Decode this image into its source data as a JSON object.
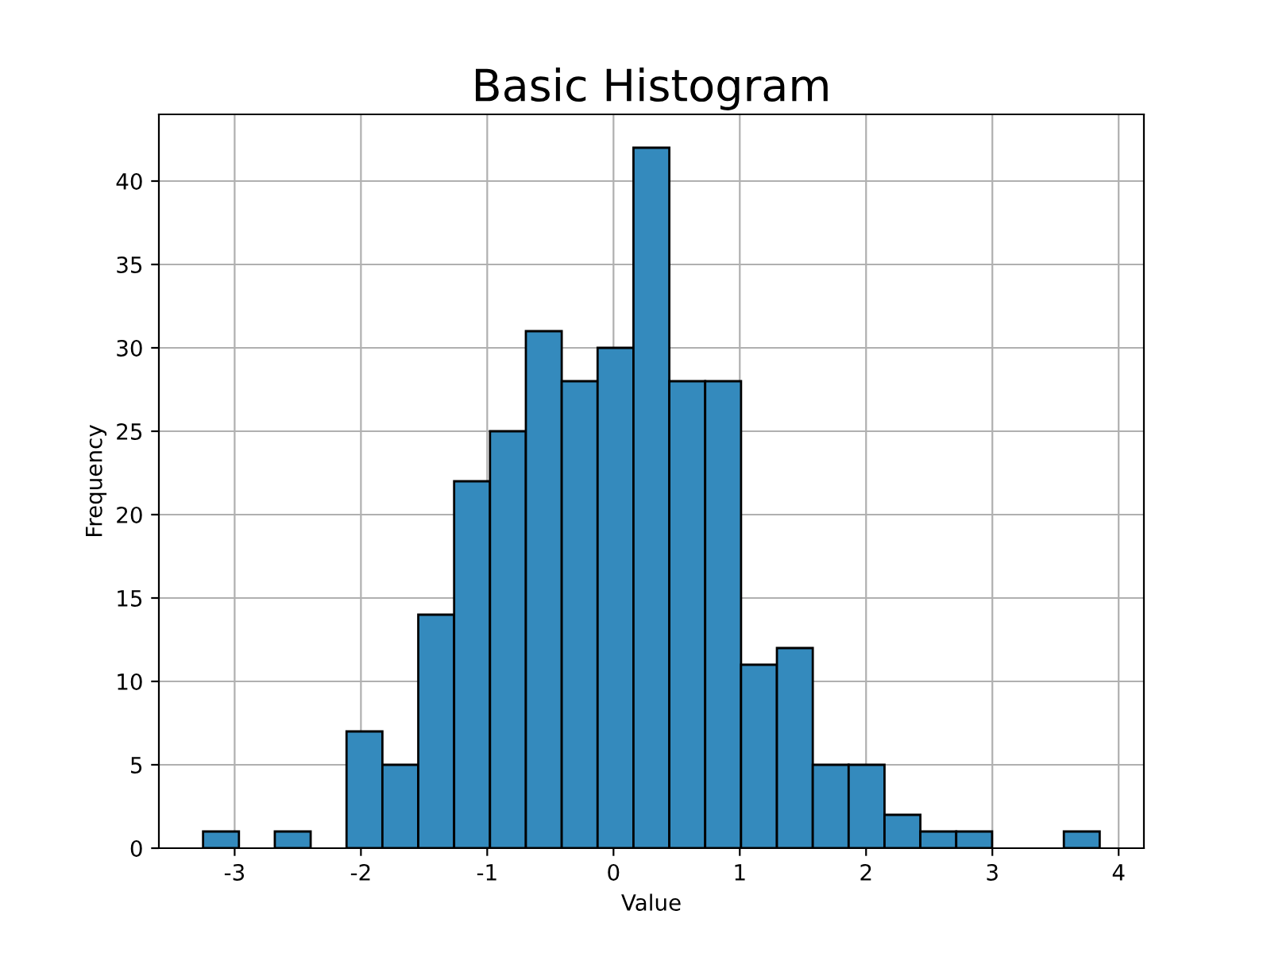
{
  "chart_data": {
    "type": "histogram",
    "title": "Basic Histogram",
    "xlabel": "Value",
    "ylabel": "Frequency",
    "bins": [
      -3.25,
      -2.966,
      -2.682,
      -2.398,
      -2.114,
      -1.83,
      -1.546,
      -1.262,
      -0.978,
      -0.694,
      -0.41,
      -0.126,
      0.158,
      0.442,
      0.726,
      1.01,
      1.294,
      1.578,
      1.862,
      2.146,
      2.43,
      2.714,
      2.998,
      3.282,
      3.566,
      3.85
    ],
    "values": [
      1,
      0,
      1,
      0,
      7,
      5,
      14,
      22,
      25,
      31,
      28,
      30,
      42,
      28,
      28,
      11,
      12,
      5,
      5,
      2,
      1,
      1,
      0,
      0,
      1
    ],
    "color": "#348abd",
    "xlim": [
      -3.6,
      4.2
    ],
    "ylim": [
      0,
      44
    ],
    "xticks": [
      {
        "value": -3,
        "label": "-3"
      },
      {
        "value": -2,
        "label": "-2"
      },
      {
        "value": -1,
        "label": "-1"
      },
      0,
      1,
      2,
      3,
      4
    ],
    "yticks": [
      0,
      5,
      10,
      15,
      20,
      25,
      30,
      35,
      40
    ],
    "grid": true
  }
}
